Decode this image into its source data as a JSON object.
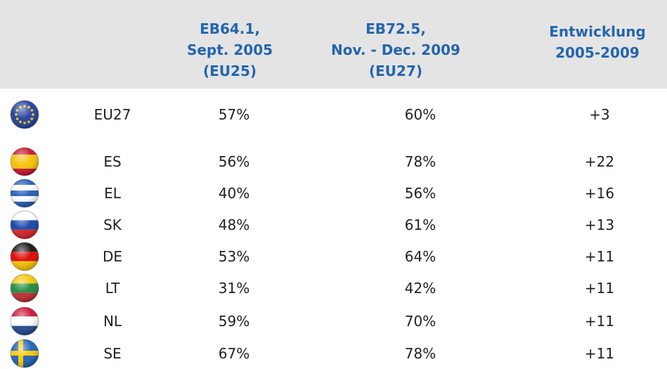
{
  "table": {
    "header": [
      [
        "EB64.1,",
        "Sept. 2005",
        "(EU25)"
      ],
      [
        "EB72.5,",
        "Nov. - Dec. 2009",
        "(EU27)"
      ],
      [
        "Entwicklung",
        "2005-2009"
      ]
    ],
    "rows": [
      [
        "EU27",
        "57%",
        "60%",
        "+3"
      ],
      [
        "ES",
        "56%",
        "78%",
        "+22"
      ],
      [
        "EL",
        "40%",
        "56%",
        "+16"
      ],
      [
        "SK",
        "48%",
        "61%",
        "+13"
      ],
      [
        "DE",
        "53%",
        "64%",
        "+11"
      ],
      [
        "LT",
        "31%",
        "42%",
        "+11"
      ],
      [
        "NL",
        "59%",
        "70%",
        "+11"
      ],
      [
        "SE",
        "67%",
        "78%",
        "+11"
      ]
    ]
  }
}
